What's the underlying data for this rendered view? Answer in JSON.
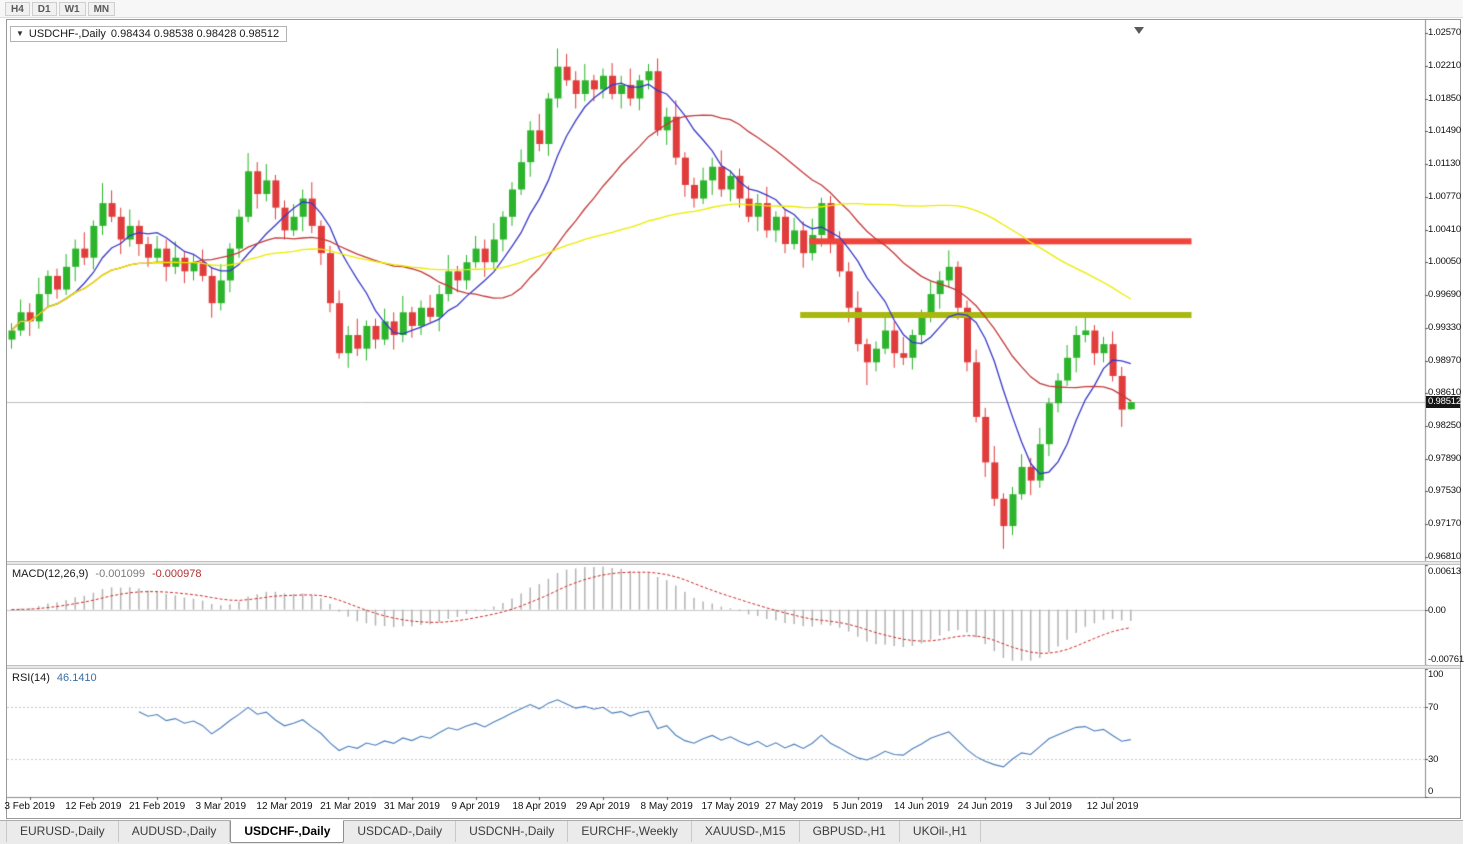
{
  "toolbar": {
    "timeframes": [
      "H4",
      "D1",
      "W1",
      "MN"
    ]
  },
  "chart": {
    "symbol_label": "USDCHF-,Daily",
    "ohlc_text": "0.98434 0.98538 0.98428 0.98512",
    "current_price": "0.98512",
    "price_axis_labels": [
      "1.02570",
      "1.02210",
      "1.01850",
      "1.01490",
      "1.01130",
      "1.00770",
      "1.00410",
      "1.00050",
      "0.99690",
      "0.99330",
      "0.98970",
      "0.98610",
      "0.98250",
      "0.97890",
      "0.97530",
      "0.97170",
      "0.96810"
    ]
  },
  "chart_data": {
    "type": "candlestick",
    "symbol": "USDCHF",
    "period": "Daily",
    "price_range": [
      0.96766,
      1.02713
    ],
    "candle_colors": {
      "bull": "#2cb42c",
      "bear": "#e03c3c"
    },
    "candles": [
      [
        0.992,
        0.9938,
        0.991,
        0.993
      ],
      [
        0.993,
        0.9964,
        0.9924,
        0.995
      ],
      [
        0.995,
        0.996,
        0.9924,
        0.994
      ],
      [
        0.994,
        0.9988,
        0.9932,
        0.997
      ],
      [
        0.997,
        0.9996,
        0.9957,
        0.999
      ],
      [
        0.999,
        0.9998,
        0.9965,
        0.9975
      ],
      [
        0.9975,
        1.0014,
        0.9969,
        1.0
      ],
      [
        1.0,
        1.003,
        0.9984,
        1.002
      ],
      [
        1.002,
        1.0038,
        1.0002,
        1.001
      ],
      [
        1.001,
        1.0051,
        0.9997,
        1.0045
      ],
      [
        1.0045,
        1.0092,
        1.0035,
        1.007
      ],
      [
        1.007,
        1.0084,
        1.0049,
        1.0055
      ],
      [
        1.0055,
        1.0065,
        1.0014,
        1.003
      ],
      [
        1.003,
        1.0063,
        1.0022,
        1.0045
      ],
      [
        1.0045,
        1.0051,
        1.0012,
        1.0025
      ],
      [
        1.0025,
        1.0033,
        1.0,
        1.001
      ],
      [
        1.001,
        1.0034,
        1.0004,
        1.002
      ],
      [
        1.002,
        1.003,
        0.9984,
        1.0
      ],
      [
        1.0,
        1.0028,
        0.9992,
        1.001
      ],
      [
        1.001,
        1.0016,
        0.9982,
        0.9995
      ],
      [
        0.9995,
        1.0013,
        0.9985,
        1.0005
      ],
      [
        1.0005,
        1.0019,
        0.9984,
        0.999
      ],
      [
        0.999,
        1.0,
        0.9944,
        0.996
      ],
      [
        0.996,
        1.0003,
        0.9952,
        0.9985
      ],
      [
        0.9985,
        1.0026,
        0.9972,
        1.002
      ],
      [
        1.002,
        1.0063,
        1.001,
        1.0055
      ],
      [
        1.0055,
        1.0125,
        1.0049,
        1.0105
      ],
      [
        1.0105,
        1.0115,
        1.0064,
        1.008
      ],
      [
        1.008,
        1.0113,
        1.0072,
        1.0095
      ],
      [
        1.0095,
        1.0101,
        1.0052,
        1.0065
      ],
      [
        1.0065,
        1.0073,
        1.003,
        1.004
      ],
      [
        1.004,
        1.0069,
        1.0034,
        1.0055
      ],
      [
        1.0055,
        1.0085,
        1.0039,
        1.0075
      ],
      [
        1.0075,
        1.0093,
        1.0037,
        1.0045
      ],
      [
        1.0045,
        1.0051,
        1.0002,
        1.0015
      ],
      [
        1.0015,
        1.0023,
        0.995,
        0.996
      ],
      [
        0.996,
        0.9974,
        0.9899,
        0.9905
      ],
      [
        0.9905,
        0.9935,
        0.9889,
        0.9925
      ],
      [
        0.9925,
        0.9943,
        0.9902,
        0.991
      ],
      [
        0.991,
        0.9941,
        0.9897,
        0.9935
      ],
      [
        0.9935,
        0.9943,
        0.991,
        0.992
      ],
      [
        0.992,
        0.9954,
        0.9914,
        0.994
      ],
      [
        0.994,
        0.995,
        0.9909,
        0.9925
      ],
      [
        0.9925,
        0.9968,
        0.9917,
        0.995
      ],
      [
        0.995,
        0.9956,
        0.9922,
        0.9935
      ],
      [
        0.9935,
        0.9963,
        0.9925,
        0.9955
      ],
      [
        0.9955,
        0.9969,
        0.9939,
        0.9945
      ],
      [
        0.9945,
        0.998,
        0.9929,
        0.997
      ],
      [
        0.997,
        1.0013,
        0.9962,
        0.9995
      ],
      [
        0.9995,
        1.0001,
        0.9972,
        0.9985
      ],
      [
        0.9985,
        1.0013,
        0.9975,
        1.0005
      ],
      [
        1.0005,
        1.0034,
        0.9999,
        1.002
      ],
      [
        1.002,
        1.003,
        0.9989,
        1.0005
      ],
      [
        1.0005,
        1.0048,
        0.9997,
        1.003
      ],
      [
        1.003,
        1.0061,
        1.0017,
        1.0055
      ],
      [
        1.0055,
        1.0093,
        1.0045,
        1.0085
      ],
      [
        1.0085,
        1.0129,
        1.0079,
        1.0115
      ],
      [
        1.0115,
        1.016,
        1.0099,
        1.015
      ],
      [
        1.015,
        1.0168,
        1.0127,
        1.0135
      ],
      [
        1.0135,
        1.0191,
        1.0122,
        1.0185
      ],
      [
        1.0185,
        1.024,
        1.0175,
        1.022
      ],
      [
        1.022,
        1.0234,
        1.0199,
        1.0205
      ],
      [
        1.0205,
        1.0215,
        1.0174,
        1.019
      ],
      [
        1.019,
        1.0223,
        1.0182,
        1.0205
      ],
      [
        1.0205,
        1.0211,
        1.0182,
        1.0195
      ],
      [
        1.0195,
        1.0218,
        1.0185,
        1.021
      ],
      [
        1.021,
        1.0224,
        1.0184,
        1.019
      ],
      [
        1.019,
        1.021,
        1.0174,
        1.02
      ],
      [
        1.02,
        1.0218,
        1.0177,
        1.0185
      ],
      [
        1.0185,
        1.0211,
        1.0172,
        1.0205
      ],
      [
        1.0205,
        1.0223,
        1.0195,
        1.0215
      ],
      [
        1.0215,
        1.0229,
        1.0144,
        1.015
      ],
      [
        1.015,
        1.0175,
        1.0134,
        1.0165
      ],
      [
        1.0165,
        1.0183,
        1.0112,
        1.012
      ],
      [
        1.012,
        1.0126,
        1.0077,
        1.009
      ],
      [
        1.009,
        1.0098,
        1.0065,
        1.0075
      ],
      [
        1.0075,
        1.0109,
        1.0069,
        1.0095
      ],
      [
        1.0095,
        1.012,
        1.0079,
        1.011
      ],
      [
        1.011,
        1.0128,
        1.0077,
        1.0085
      ],
      [
        1.0085,
        1.0106,
        1.0072,
        1.01
      ],
      [
        1.01,
        1.0108,
        1.0065,
        1.0075
      ],
      [
        1.0075,
        1.0089,
        1.0049,
        1.0055
      ],
      [
        1.0055,
        1.008,
        1.0039,
        1.007
      ],
      [
        1.007,
        1.0088,
        1.0032,
        1.004
      ],
      [
        1.004,
        1.0061,
        1.0027,
        1.0055
      ],
      [
        1.0055,
        1.0063,
        1.0015,
        1.0025
      ],
      [
        1.0025,
        1.0054,
        1.0019,
        1.004
      ],
      [
        1.004,
        1.005,
        0.9999,
        1.0015
      ],
      [
        1.0015,
        1.0053,
        1.0007,
        1.0035
      ],
      [
        1.0035,
        1.0076,
        1.0022,
        1.007
      ],
      [
        1.007,
        1.0078,
        1.0015,
        1.0025
      ],
      [
        1.0025,
        1.0039,
        0.9989,
        0.9995
      ],
      [
        0.9995,
        1.0005,
        0.9939,
        0.9955
      ],
      [
        0.9955,
        0.9973,
        0.9907,
        0.9915
      ],
      [
        0.9915,
        0.9921,
        0.987,
        0.9895
      ],
      [
        0.9895,
        0.9918,
        0.9885,
        0.991
      ],
      [
        0.991,
        0.9944,
        0.9904,
        0.993
      ],
      [
        0.993,
        0.994,
        0.9889,
        0.9905
      ],
      [
        0.9905,
        0.9923,
        0.9892,
        0.99
      ],
      [
        0.99,
        0.9931,
        0.9887,
        0.9925
      ],
      [
        0.9925,
        0.9953,
        0.9915,
        0.9945
      ],
      [
        0.9945,
        0.9984,
        0.9939,
        0.997
      ],
      [
        0.997,
        0.9995,
        0.9954,
        0.9985
      ],
      [
        0.9985,
        1.0018,
        0.9977,
        1.0
      ],
      [
        1.0,
        1.0006,
        0.9942,
        0.9955
      ],
      [
        0.9955,
        0.9963,
        0.9885,
        0.9895
      ],
      [
        0.9895,
        0.9909,
        0.9829,
        0.9835
      ],
      [
        0.9835,
        0.9845,
        0.9769,
        0.9785
      ],
      [
        0.9785,
        0.9803,
        0.9737,
        0.9745
      ],
      [
        0.9745,
        0.9751,
        0.969,
        0.9715
      ],
      [
        0.9715,
        0.9758,
        0.9705,
        0.975
      ],
      [
        0.975,
        0.9794,
        0.9744,
        0.978
      ],
      [
        0.978,
        0.979,
        0.9749,
        0.9765
      ],
      [
        0.9765,
        0.9823,
        0.9757,
        0.9805
      ],
      [
        0.9805,
        0.9856,
        0.9792,
        0.985
      ],
      [
        0.985,
        0.9883,
        0.984,
        0.9875
      ],
      [
        0.9875,
        0.9914,
        0.9869,
        0.99
      ],
      [
        0.99,
        0.9935,
        0.9884,
        0.9925
      ],
      [
        0.9925,
        0.9948,
        0.9917,
        0.993
      ],
      [
        0.993,
        0.9936,
        0.9892,
        0.9905
      ],
      [
        0.9905,
        0.9923,
        0.9895,
        0.9915
      ],
      [
        0.9915,
        0.9929,
        0.9874,
        0.988
      ],
      [
        0.988,
        0.989,
        0.9824,
        0.9843
      ],
      [
        0.98434,
        0.98538,
        0.98428,
        0.98512
      ]
    ],
    "date_ticks": [
      {
        "index": 2,
        "label": "3 Feb 2019"
      },
      {
        "index": 9,
        "label": "12 Feb 2019"
      },
      {
        "index": 16,
        "label": "21 Feb 2019"
      },
      {
        "index": 23,
        "label": "3 Mar 2019"
      },
      {
        "index": 30,
        "label": "12 Mar 2019"
      },
      {
        "index": 37,
        "label": "21 Mar 2019"
      },
      {
        "index": 44,
        "label": "31 Mar 2019"
      },
      {
        "index": 51,
        "label": "9 Apr 2019"
      },
      {
        "index": 58,
        "label": "18 Apr 2019"
      },
      {
        "index": 65,
        "label": "29 Apr 2019"
      },
      {
        "index": 72,
        "label": "8 May 2019"
      },
      {
        "index": 79,
        "label": "17 May 2019"
      },
      {
        "index": 86,
        "label": "27 May 2019"
      },
      {
        "index": 93,
        "label": "5 Jun 2019"
      },
      {
        "index": 100,
        "label": "14 Jun 2019"
      },
      {
        "index": 107,
        "label": "24 Jun 2019"
      },
      {
        "index": 114,
        "label": "3 Jul 2019"
      },
      {
        "index": 121,
        "label": "12 Jul 2019"
      }
    ],
    "moving_averages": [
      {
        "name": "fast",
        "period": 8,
        "color": "#3939c8"
      },
      {
        "name": "medium",
        "period": 21,
        "color": "#c23b3b"
      },
      {
        "name": "slow",
        "period": 55,
        "color": "#ebeb00"
      }
    ],
    "hlines": [
      {
        "name": "resistance",
        "price": 1.0028,
        "color": "#f0433a",
        "width": 6,
        "start_index": 88,
        "end_index": 130
      },
      {
        "name": "support",
        "price": 0.9947,
        "color": "#a9b80e",
        "width": 6,
        "start_index": 87,
        "end_index": 130
      }
    ],
    "bid_line": {
      "price": 0.98512,
      "color": "#bdbdbd"
    }
  },
  "macd": {
    "label": "MACD(12,26,9)",
    "main_value": "-0.001099",
    "signal_value": "-0.000978",
    "fast": 12,
    "slow": 26,
    "signal": 9,
    "range": [
      -0.00761,
      0.00613
    ],
    "axis_labels": [
      "0.00613",
      "0.00",
      "-0.00761"
    ],
    "histogram_color": "#b4b4b4",
    "signal_color": "#cc2a2a"
  },
  "rsi": {
    "label": "RSI(14)",
    "value": "46.1410",
    "period": 14,
    "levels": [
      70,
      30
    ],
    "axis_labels": [
      "100",
      "70",
      "30",
      "0"
    ],
    "line_color": "#4a7ebb"
  },
  "tabs": {
    "items": [
      {
        "label": "EURUSD-,Daily",
        "active": false
      },
      {
        "label": "AUDUSD-,Daily",
        "active": false
      },
      {
        "label": "USDCHF-,Daily",
        "active": true
      },
      {
        "label": "USDCAD-,Daily",
        "active": false
      },
      {
        "label": "USDCNH-,Daily",
        "active": false
      },
      {
        "label": "EURCHF-,Weekly",
        "active": false
      },
      {
        "label": "XAUUSD-,M15",
        "active": false
      },
      {
        "label": "GBPUSD-,H1",
        "active": false
      },
      {
        "label": "UKOil-,H1",
        "active": false
      }
    ]
  }
}
